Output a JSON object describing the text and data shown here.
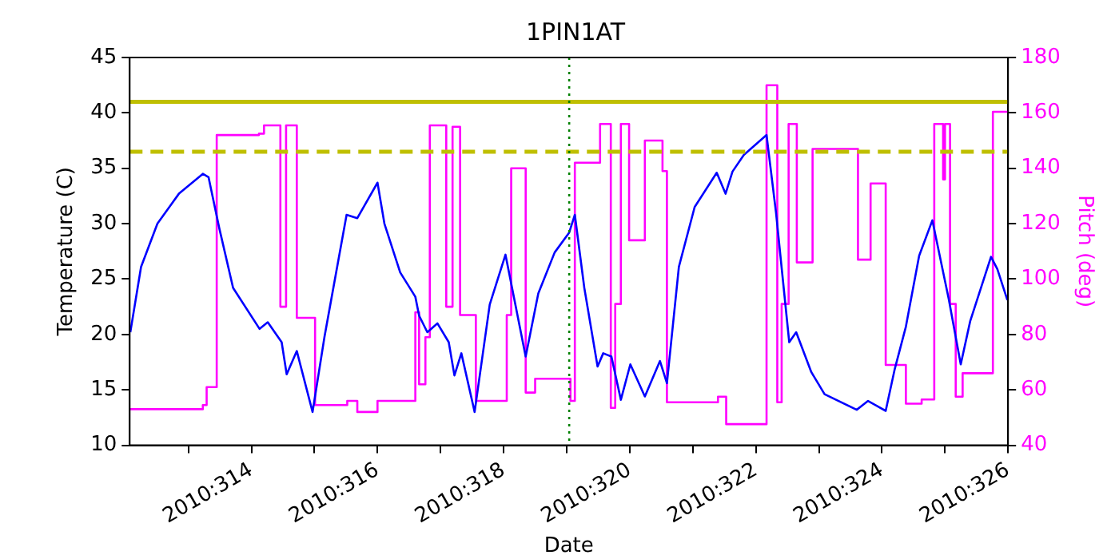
{
  "chart_data": {
    "type": "line",
    "title": "1PIN1AT",
    "xlabel": "Date",
    "ylabel": "Temperature (C)",
    "y2label": "Pitch (deg)",
    "xlim": [
      "2010-11-08T01:41",
      "2010-11-22"
    ],
    "xticks": [
      {
        "value": "2010-11-09",
        "label": null
      },
      {
        "value": "2010-11-10",
        "label": "2010:314"
      },
      {
        "value": "2010-11-11",
        "label": null
      },
      {
        "value": "2010-11-12",
        "label": "2010:316"
      },
      {
        "value": "2010-11-13",
        "label": null
      },
      {
        "value": "2010-11-14",
        "label": "2010:318"
      },
      {
        "value": "2010-11-15",
        "label": null
      },
      {
        "value": "2010-11-16",
        "label": "2010:320"
      },
      {
        "value": "2010-11-17",
        "label": null
      },
      {
        "value": "2010-11-18",
        "label": "2010:322"
      },
      {
        "value": "2010-11-19",
        "label": null
      },
      {
        "value": "2010-11-20",
        "label": "2010:324"
      },
      {
        "value": "2010-11-21",
        "label": null
      },
      {
        "value": "2010-11-22",
        "label": "2010:326"
      }
    ],
    "ylim": [
      10,
      45
    ],
    "yticks": [
      10,
      15,
      20,
      25,
      30,
      35,
      40,
      45
    ],
    "y2lim": [
      40,
      180
    ],
    "y2ticks": [
      40,
      60,
      80,
      100,
      120,
      140,
      160,
      180
    ],
    "grid": false,
    "legend": false,
    "marker": "none",
    "line_style": "solid",
    "ref_lines": [
      {
        "axis": "y",
        "value": 41,
        "color": "#bfbf00",
        "line_style": "solid"
      },
      {
        "axis": "y",
        "value": 36.5,
        "color": "#bfbf00",
        "line_style": "dashed"
      },
      {
        "axis": "x",
        "value": "2010-11-15T00:58",
        "color": "#008000",
        "line_style": "dotted"
      }
    ],
    "series": [
      {
        "type": "line",
        "axis": "y",
        "color": "#0000ff",
        "x": [
          "2010-11-08T01:55",
          "2010-11-08T06:00",
          "2010-11-08T12:14",
          "2010-11-08T20:24",
          "2010-11-09T05:31",
          "2010-11-09T07:41",
          "2010-11-09T11:46",
          "2010-11-09T17:02",
          "2010-11-10T03:07",
          "2010-11-10T06:14",
          "2010-11-10T11:31",
          "2010-11-10T13:26",
          "2010-11-10T17:17",
          "2010-11-10T23:17",
          "2010-11-11T03:50",
          "2010-11-11T12:14",
          "2010-11-11T16:19",
          "2010-11-12T00:00",
          "2010-11-12T02:38",
          "2010-11-12T08:38",
          "2010-11-12T14:24",
          "2010-11-12T15:50",
          "2010-11-12T18:58",
          "2010-11-12T22:48",
          "2010-11-13T03:07",
          "2010-11-13T05:17",
          "2010-11-13T07:55",
          "2010-11-13T12:58",
          "2010-11-13T18:43",
          "2010-11-14T00:43",
          "2010-11-14T08:24",
          "2010-11-14T13:12",
          "2010-11-14T19:26",
          "2010-11-15T00:58",
          "2010-11-15T03:07",
          "2010-11-15T06:43",
          "2010-11-15T11:46",
          "2010-11-15T13:55",
          "2010-11-15T17:02",
          "2010-11-15T20:38",
          "2010-11-16T00:14",
          "2010-11-16T05:46",
          "2010-11-16T11:31",
          "2010-11-16T14:10",
          "2010-11-16T18:43",
          "2010-11-17T00:43",
          "2010-11-17T09:07",
          "2010-11-17T12:29",
          "2010-11-17T15:07",
          "2010-11-17T19:26",
          "2010-11-18T04:05",
          "2010-11-18T07:41",
          "2010-11-18T12:43",
          "2010-11-18T15:22",
          "2010-11-18T21:07",
          "2010-11-19T02:10",
          "2010-11-19T14:24",
          "2010-11-19T18:43",
          "2010-11-20T01:26",
          "2010-11-20T04:48",
          "2010-11-20T09:07",
          "2010-11-20T14:10",
          "2010-11-20T19:12",
          "2010-11-21T01:26",
          "2010-11-21T06:00",
          "2010-11-21T09:36",
          "2010-11-21T17:31",
          "2010-11-21T19:55",
          "2010-11-21T23:46"
        ],
        "values": [
          20.2,
          26.1,
          30.0,
          32.7,
          34.5,
          34.2,
          29.6,
          24.2,
          20.5,
          21.1,
          19.3,
          16.4,
          18.5,
          13.0,
          19.8,
          30.8,
          30.5,
          33.7,
          30.0,
          25.6,
          23.4,
          21.7,
          20.2,
          21.0,
          19.3,
          16.3,
          18.3,
          13.0,
          22.7,
          27.2,
          18.0,
          23.7,
          27.4,
          29.2,
          30.8,
          24.2,
          17.1,
          18.3,
          18.0,
          14.1,
          17.3,
          14.4,
          17.6,
          15.6,
          26.1,
          31.5,
          34.6,
          32.7,
          34.7,
          36.2,
          38.0,
          31.0,
          19.3,
          20.2,
          16.6,
          14.6,
          13.2,
          14.0,
          13.1,
          16.8,
          20.7,
          27.1,
          30.3,
          23.2,
          17.3,
          21.2,
          27.0,
          25.9,
          23.1
        ]
      },
      {
        "type": "step",
        "axis": "y2",
        "color": "#ff00ff",
        "x": [
          "2010-11-08T01:41",
          "2010-11-09T05:31",
          "2010-11-09T06:58",
          "2010-11-09T10:48",
          "2010-11-10T02:53",
          "2010-11-10T04:48",
          "2010-11-10T11:02",
          "2010-11-10T13:12",
          "2010-11-10T17:17",
          "2010-11-11T00:14",
          "2010-11-11T12:29",
          "2010-11-11T16:19",
          "2010-11-12T00:00",
          "2010-11-12T14:24",
          "2010-11-12T15:50",
          "2010-11-12T18:14",
          "2010-11-12T19:55",
          "2010-11-13T02:10",
          "2010-11-13T04:34",
          "2010-11-13T07:26",
          "2010-11-13T13:26",
          "2010-11-14T01:12",
          "2010-11-14T02:53",
          "2010-11-14T08:24",
          "2010-11-14T12:00",
          "2010-11-15T01:26",
          "2010-11-15T03:07",
          "2010-11-15T12:43",
          "2010-11-15T16:48",
          "2010-11-15T18:29",
          "2010-11-15T20:38",
          "2010-11-15T23:46",
          "2010-11-16T05:46",
          "2010-11-16T12:29",
          "2010-11-16T14:10",
          "2010-11-17T09:36",
          "2010-11-17T12:43",
          "2010-11-18T04:05",
          "2010-11-18T08:10",
          "2010-11-18T09:50",
          "2010-11-18T12:29",
          "2010-11-18T15:36",
          "2010-11-18T21:36",
          "2010-11-19T14:53",
          "2010-11-19T19:41",
          "2010-11-20T01:26",
          "2010-11-20T09:07",
          "2010-11-20T15:07",
          "2010-11-20T19:55",
          "2010-11-20T23:17",
          "2010-11-21T00:00",
          "2010-11-21T01:55",
          "2010-11-21T04:05",
          "2010-11-21T06:43",
          "2010-11-21T18:14",
          "2010-11-22T00:00"
        ],
        "values": [
          53,
          54.5,
          61,
          152,
          152.5,
          155.5,
          90,
          155.5,
          86,
          54.5,
          56,
          52,
          56,
          88,
          62,
          79,
          155.5,
          90,
          155,
          87,
          56,
          87,
          140,
          59,
          64,
          56,
          142,
          156,
          53.5,
          91,
          156,
          114,
          150,
          139,
          55.5,
          57.5,
          47.6,
          170,
          55.5,
          91,
          156,
          106,
          147,
          107,
          134.5,
          69,
          55,
          56.5,
          156,
          136,
          156,
          91,
          57.5,
          66,
          160.4,
          160.4
        ]
      }
    ]
  }
}
